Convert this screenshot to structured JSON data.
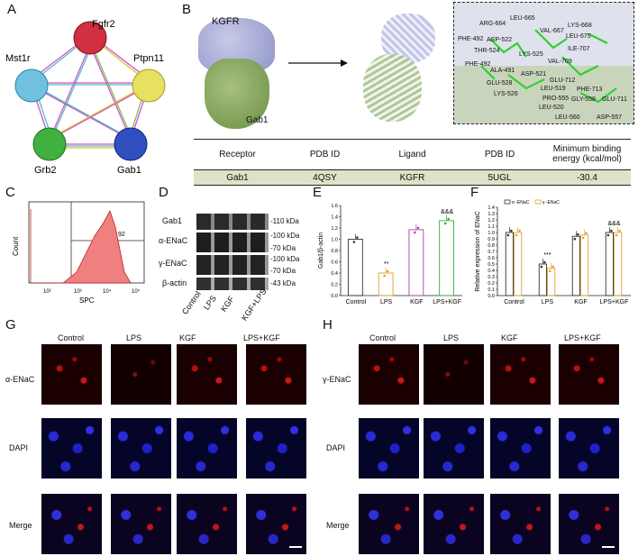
{
  "panels": {
    "A": "A",
    "B": "B",
    "C": "C",
    "D": "D",
    "E": "E",
    "F": "F",
    "G": "G",
    "H": "H"
  },
  "network": {
    "nodes": [
      "Fgfr2",
      "Mst1r",
      "Ptpn11",
      "Grb2",
      "Gab1"
    ]
  },
  "docking": {
    "protein_top": "KGFR",
    "protein_bottom": "Gab1",
    "residues": [
      "ARG-664",
      "LEU-665",
      "VAL-667",
      "LYS-668",
      "PHE-492",
      "ASP-522",
      "THR-524",
      "LEU-675",
      "ILE-707",
      "LYS-525",
      "VAL-709",
      "PHE-492",
      "ALA-491",
      "ASP-521",
      "GLU-712",
      "GLU-528",
      "LEU-519",
      "PHE-713",
      "GLY-558",
      "GLU-711",
      "LYS-526",
      "PRO-555",
      "LEU-520",
      "LEU-560",
      "ASP-557"
    ]
  },
  "binding_table": {
    "headers": [
      "Receptor",
      "PDB ID",
      "Ligand",
      "PDB ID",
      "Minimum binding energy (kcal/mol)"
    ],
    "row": [
      "Gab1",
      "4QSY",
      "KGFR",
      "5UGL",
      "-30.4"
    ]
  },
  "flow": {
    "xlabel": "SPC",
    "ylabel": "Count",
    "gate_value": "92",
    "x_ticks": [
      "10²",
      "10³",
      "10⁴",
      "10⁵"
    ]
  },
  "western": {
    "rows": [
      "Gab1",
      "α-ENaC",
      "γ-ENaC",
      "β-actin"
    ],
    "markers": [
      "-110 kDa",
      "-100 kDa",
      "-70 kDa",
      "-100 kDa",
      "-70 kDa",
      "-43 kDa"
    ],
    "lanes": [
      "Control",
      "LPS",
      "KGF",
      "KGF+LPS"
    ]
  },
  "chart_data": [
    {
      "type": "bar",
      "title": "",
      "ylabel": "Gab1/β-actin",
      "categories": [
        "Control",
        "LPS",
        "KGF",
        "LPS+KGF"
      ],
      "values": [
        1.0,
        0.4,
        1.17,
        1.33
      ],
      "ylim": [
        0,
        1.6
      ],
      "yticks": [
        "0.0",
        "0.2",
        "0.4",
        "0.6",
        "0.8",
        "1.0",
        "1.2",
        "1.4",
        "1.6"
      ],
      "annotations": {
        "LPS": "**",
        "LPS+KGF": "&&&"
      },
      "colors": [
        "#333333",
        "#e0a030",
        "#b040b0",
        "#30b030"
      ]
    },
    {
      "type": "bar",
      "title": "",
      "ylabel": "Relative expression of ENaC",
      "categories": [
        "Control",
        "LPS",
        "KGF",
        "LPS+KGF"
      ],
      "series": [
        {
          "name": "α -ENaC",
          "values": [
            1.0,
            0.5,
            0.94,
            1.0
          ]
        },
        {
          "name": "γ -ENaC",
          "values": [
            1.0,
            0.43,
            0.96,
            1.0
          ]
        }
      ],
      "ylim": [
        0,
        1.4
      ],
      "yticks": [
        "0.0",
        "0.1",
        "0.2",
        "0.3",
        "0.4",
        "0.5",
        "0.6",
        "0.7",
        "0.8",
        "0.9",
        "1.0",
        "1.1",
        "1.2",
        "1.3",
        "1.4"
      ],
      "annotations": {
        "LPS": "***",
        "LPS+KGF": "&&&"
      },
      "colors": [
        "#333333",
        "#e0a030"
      ]
    }
  ],
  "micro_g": {
    "columns": [
      "Control",
      "LPS",
      "KGF",
      "LPS+KGF"
    ],
    "rows": [
      "α-ENaC",
      "DAPI",
      "Merge"
    ]
  },
  "micro_h": {
    "columns": [
      "Control",
      "LPS",
      "KGF",
      "LPS+KGF"
    ],
    "rows": [
      "γ-ENaC",
      "DAPI",
      "Merge"
    ]
  }
}
